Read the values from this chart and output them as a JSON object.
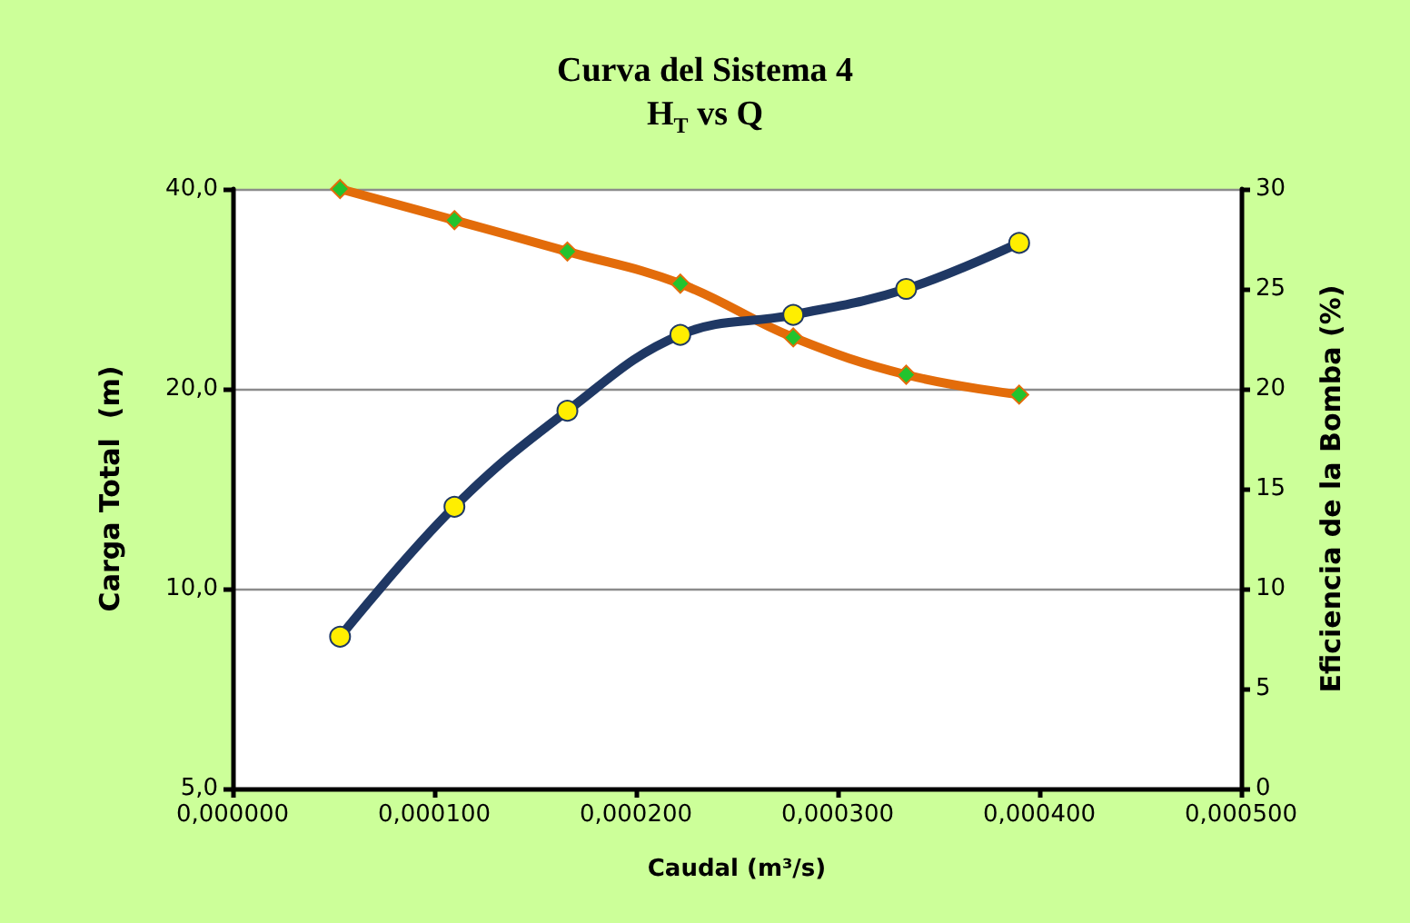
{
  "chart_data": {
    "type": "line",
    "title": "Curva del Sistema 4",
    "subtitle": "H$_{T}$ vs Q",
    "xlabel": "Caudal (m³/s)",
    "ylabel": "Carga Total  (m)",
    "y2label": "Eficiencia de la Bomba (%)",
    "x": [
      5.33e-05,
      0.00011,
      0.000166,
      0.000222,
      0.000278,
      0.000334,
      0.00039
    ],
    "series": [
      {
        "color": "#e36c0a",
        "marker": "diamond",
        "values": [
          40.0,
          35.9,
          32.2,
          28.8,
          23.9,
          21.0,
          19.6
        ]
      },
      {
        "color": "#1f3864",
        "marker": "circle",
        "axis": "y2",
        "values": [
          7.6,
          14.1,
          18.9,
          22.7,
          23.7,
          25.0,
          27.3
        ]
      }
    ],
    "log": "y",
    "grid": "y",
    "xlim": [
      0,
      0.0005
    ],
    "xticks": [
      {
        "value": 0,
        "label": "0,000000"
      },
      {
        "value": 0.0001,
        "label": "0,000100"
      },
      {
        "value": 0.0002,
        "label": "0,000200"
      },
      {
        "value": 0.0003,
        "label": "0,000300"
      },
      {
        "value": 0.0004,
        "label": "0,000400"
      },
      {
        "value": 0.0005,
        "label": "0,000500"
      }
    ],
    "ylim": [
      5,
      40
    ],
    "yticks": [
      {
        "value": 5,
        "label": "5,0"
      },
      {
        "value": 10,
        "label": "10,0"
      },
      {
        "value": 20,
        "label": "20,0"
      },
      {
        "value": 40,
        "label": "40,0"
      }
    ],
    "y2lim": [
      0,
      30
    ],
    "y2ticks": [
      0,
      5,
      10,
      15,
      20,
      25,
      30
    ]
  }
}
